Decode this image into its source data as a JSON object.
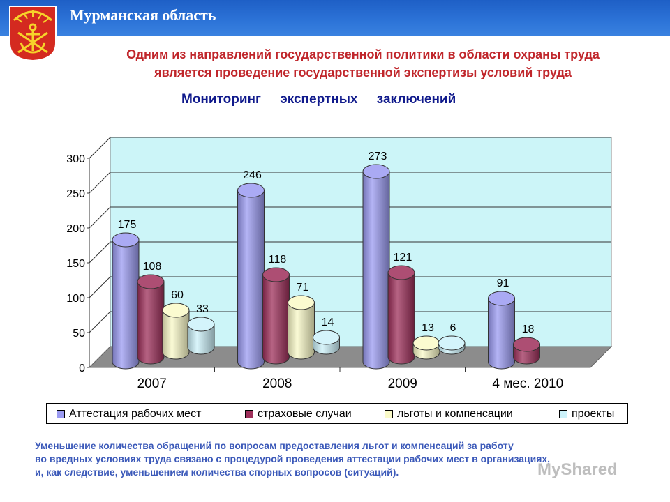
{
  "header": {
    "title": "Мурманская область"
  },
  "subtitle": {
    "line1": "Одним из направлений государственной политики  в области охраны труда",
    "line2": "является проведение государственной экспертизы условий труда"
  },
  "colors": {
    "header": "#2a6fd4",
    "subtitle": "#c0262b",
    "chart_title": "#101a8c",
    "note": "#3b59b9",
    "wall": "#ccf5f8",
    "floor": "#8c8c8c"
  },
  "chart_data": {
    "type": "bar",
    "title": "Мониторинг   экспертных   заключений",
    "categories": [
      "2007",
      "2008",
      "2009",
      "4 мес. 2010"
    ],
    "series": [
      {
        "name": "Аттестация рабочих мест",
        "color": "#9b9bf2",
        "values": [
          175,
          246,
          273,
          91
        ]
      },
      {
        "name": "страховые случаи",
        "color": "#9e2f5a",
        "values": [
          108,
          118,
          121,
          18
        ]
      },
      {
        "name": "льготы и компенсации",
        "color": "#fafac8",
        "values": [
          60,
          71,
          13,
          null
        ]
      },
      {
        "name": "проекты",
        "color": "#ccf2fa",
        "values": [
          33,
          14,
          6,
          null
        ]
      }
    ],
    "yticks": [
      "0",
      "50",
      "100",
      "150",
      "200",
      "250",
      "300"
    ],
    "ylim": [
      0,
      300
    ],
    "grid": true,
    "legend": "bottom",
    "style": "3d-cylinder"
  },
  "note": {
    "line1": "Уменьшение количества обращений по вопросам  предоставления льгот и компенсаций за работу",
    "line2": "во вредных  условиях труда связано с процедурой проведения аттестации рабочих мест в организациях,",
    "line3": "и, как следствие, уменьшением количества спорных вопросов (ситуаций)."
  },
  "watermark": "MyShared"
}
